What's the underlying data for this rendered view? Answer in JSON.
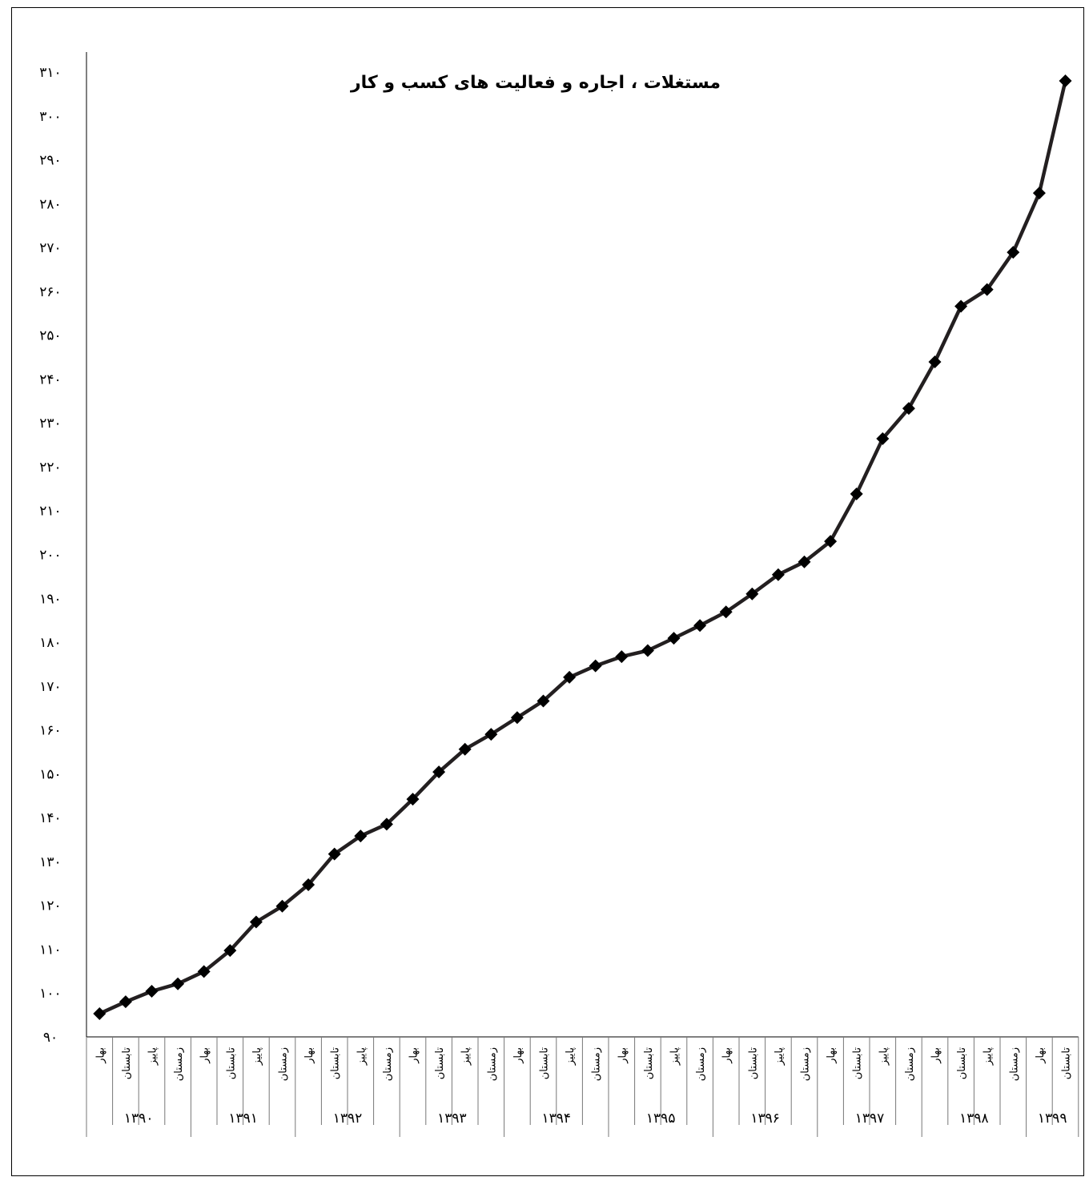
{
  "chart_data": {
    "type": "line",
    "title": "مستغلات ، اجاره و فعالیت های کسب و کار",
    "xlabel": "",
    "ylabel": "",
    "ylim": [
      90,
      310
    ],
    "yticks": [
      "۹۰",
      "۱۰۰",
      "۱۱۰",
      "۱۲۰",
      "۱۳۰",
      "۱۴۰",
      "۱۵۰",
      "۱۶۰",
      "۱۷۰",
      "۱۸۰",
      "۱۹۰",
      "۲۰۰",
      "۲۱۰",
      "۲۲۰",
      "۲۳۰",
      "۲۴۰",
      "۲۵۰",
      "۲۶۰",
      "۲۷۰",
      "۲۸۰",
      "۲۹۰",
      "۳۰۰",
      "۳۱۰"
    ],
    "grid": false,
    "line_color": "#231f20",
    "marker_color": "#000000",
    "years": [
      {
        "label": "۱۳۹۰",
        "seasons": [
          "بهار",
          "تابستان",
          "پاییز",
          "زمستان"
        ]
      },
      {
        "label": "۱۳۹۱",
        "seasons": [
          "بهار",
          "تابستان",
          "پاییز",
          "زمستان"
        ]
      },
      {
        "label": "۱۳۹۲",
        "seasons": [
          "بهار",
          "تابستان",
          "پاییز",
          "زمستان"
        ]
      },
      {
        "label": "۱۳۹۳",
        "seasons": [
          "بهار",
          "تابستان",
          "پاییز",
          "زمستان"
        ]
      },
      {
        "label": "۱۳۹۴",
        "seasons": [
          "بهار",
          "تابستان",
          "پاییز",
          "زمستان"
        ]
      },
      {
        "label": "۱۳۹۵",
        "seasons": [
          "بهار",
          "تابستان",
          "پاییز",
          "زمستان"
        ]
      },
      {
        "label": "۱۳۹۶",
        "seasons": [
          "بهار",
          "تابستان",
          "پاییز",
          "زمستان"
        ]
      },
      {
        "label": "۱۳۹۷",
        "seasons": [
          "بهار",
          "تابستان",
          "پاییز",
          "زمستان"
        ]
      },
      {
        "label": "۱۳۹۸",
        "seasons": [
          "بهار",
          "تابستان",
          "پاییز",
          "زمستان"
        ]
      },
      {
        "label": "۱۳۹۹",
        "seasons": [
          "بهار",
          "تابستان"
        ]
      }
    ],
    "series": [
      {
        "values": [
          95.3,
          98.0,
          100.4,
          102.1,
          104.9,
          109.7,
          116.2,
          119.8,
          124.7,
          131.7,
          135.8,
          138.5,
          144.2,
          150.4,
          155.6,
          159.0,
          162.8,
          166.6,
          172.0,
          174.6,
          176.7,
          178.1,
          180.9,
          183.8,
          186.9,
          191.0,
          195.4,
          198.3,
          203.0,
          213.8,
          226.4,
          233.3,
          243.9,
          256.6,
          260.4,
          268.9,
          282.4,
          308.0
        ]
      }
    ]
  }
}
